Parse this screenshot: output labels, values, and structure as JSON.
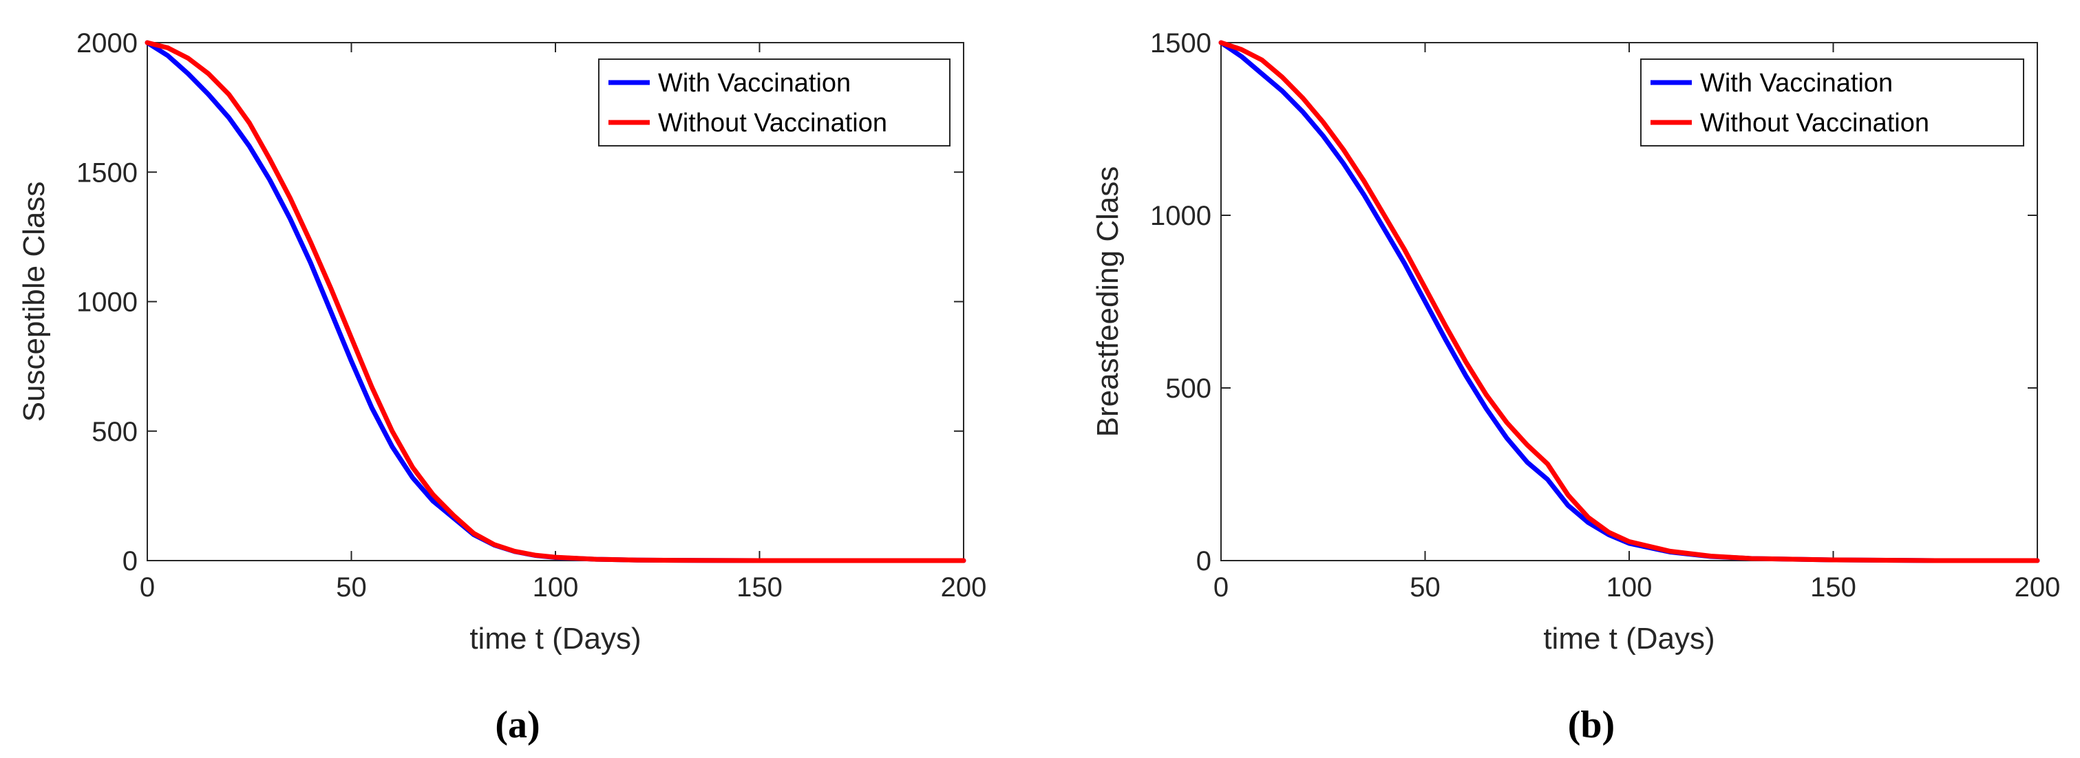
{
  "chart_data": [
    {
      "type": "line",
      "caption": "(a)",
      "xlabel": "time t (Days)",
      "ylabel": "Susceptible Class",
      "xlim": [
        0,
        200
      ],
      "ylim": [
        0,
        2000
      ],
      "xticks": [
        0,
        50,
        100,
        150,
        200
      ],
      "yticks": [
        0,
        500,
        1000,
        1500,
        2000
      ],
      "grid": false,
      "legend": "top-right",
      "series": [
        {
          "name": "With Vaccination",
          "color": "#0000ff",
          "x": [
            0,
            5,
            10,
            15,
            20,
            25,
            30,
            35,
            40,
            45,
            50,
            55,
            60,
            65,
            70,
            75,
            80,
            85,
            90,
            95,
            100,
            110,
            120,
            130,
            150,
            175,
            200
          ],
          "y": [
            2000,
            1950,
            1880,
            1800,
            1710,
            1600,
            1470,
            1320,
            1150,
            960,
            770,
            590,
            440,
            320,
            230,
            165,
            100,
            60,
            35,
            20,
            12,
            5,
            2,
            1,
            0,
            0,
            0
          ]
        },
        {
          "name": "Without Vaccination",
          "color": "#ff0000",
          "x": [
            0,
            5,
            10,
            15,
            20,
            25,
            30,
            35,
            40,
            45,
            50,
            55,
            60,
            65,
            70,
            75,
            80,
            85,
            90,
            95,
            100,
            110,
            120,
            130,
            150,
            175,
            200
          ],
          "y": [
            2000,
            1980,
            1940,
            1880,
            1800,
            1690,
            1550,
            1400,
            1230,
            1050,
            860,
            670,
            500,
            360,
            255,
            175,
            105,
            62,
            36,
            21,
            13,
            5,
            2,
            1,
            0,
            0,
            0
          ]
        }
      ]
    },
    {
      "type": "line",
      "caption": "(b)",
      "xlabel": "time t (Days)",
      "ylabel": "Breastfeeding Class",
      "xlim": [
        0,
        200
      ],
      "ylim": [
        0,
        1500
      ],
      "xticks": [
        0,
        50,
        100,
        150,
        200
      ],
      "yticks": [
        0,
        500,
        1000,
        1500
      ],
      "grid": false,
      "legend": "top-right",
      "series": [
        {
          "name": "With Vaccination",
          "color": "#0000ff",
          "x": [
            0,
            5,
            10,
            15,
            20,
            25,
            30,
            35,
            40,
            45,
            50,
            55,
            60,
            65,
            70,
            75,
            80,
            85,
            90,
            95,
            100,
            110,
            120,
            130,
            150,
            175,
            200
          ],
          "y": [
            1500,
            1460,
            1410,
            1360,
            1300,
            1230,
            1150,
            1060,
            960,
            860,
            750,
            640,
            535,
            440,
            355,
            285,
            235,
            160,
            110,
            75,
            50,
            25,
            12,
            6,
            2,
            0,
            0
          ]
        },
        {
          "name": "Without Vaccination",
          "color": "#ff0000",
          "x": [
            0,
            5,
            10,
            15,
            20,
            25,
            30,
            35,
            40,
            45,
            50,
            55,
            60,
            65,
            70,
            75,
            80,
            85,
            90,
            95,
            100,
            110,
            120,
            130,
            150,
            175,
            200
          ],
          "y": [
            1500,
            1480,
            1450,
            1400,
            1340,
            1270,
            1190,
            1100,
            1000,
            900,
            790,
            680,
            575,
            480,
            400,
            335,
            280,
            190,
            125,
            82,
            55,
            27,
            13,
            6,
            2,
            0,
            0
          ]
        }
      ]
    }
  ]
}
